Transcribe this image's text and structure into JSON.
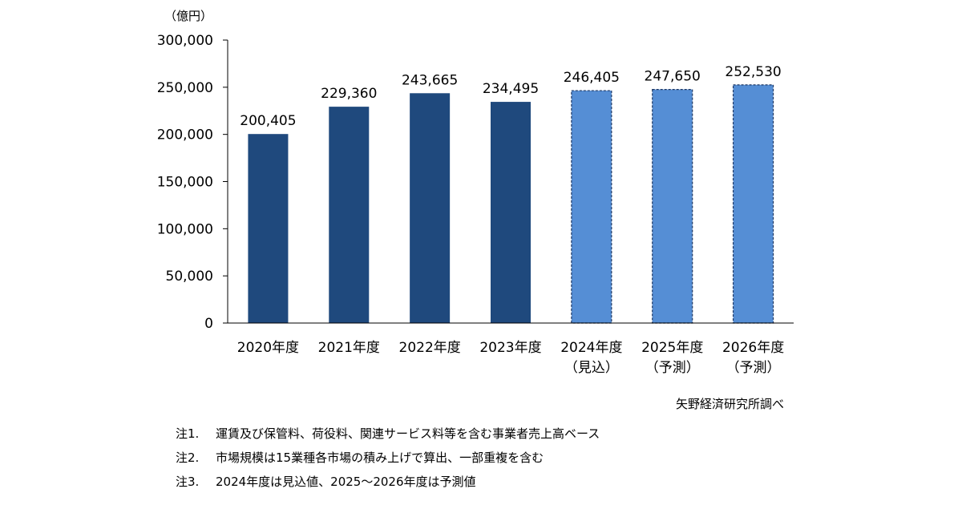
{
  "chart_data": {
    "type": "bar",
    "unit": "（億円）",
    "categories": [
      [
        "2020年度"
      ],
      [
        "2021年度"
      ],
      [
        "2022年度"
      ],
      [
        "2023年度"
      ],
      [
        "2024年度",
        "（見込）"
      ],
      [
        "2025年度",
        "（予測）"
      ],
      [
        "2026年度",
        "（予測）"
      ]
    ],
    "values": [
      200405,
      229360,
      243665,
      234495,
      246405,
      247650,
      252530
    ],
    "value_labels": [
      "200,405",
      "229,360",
      "243,665",
      "234,495",
      "246,405",
      "247,650",
      "252,530"
    ],
    "bar_styles": [
      "actual",
      "actual",
      "actual",
      "actual",
      "estimate",
      "forecast",
      "forecast"
    ],
    "ylim": [
      0,
      300000
    ],
    "yticks": [
      0,
      50000,
      100000,
      150000,
      200000,
      250000,
      300000
    ],
    "ytick_labels": [
      "0",
      "50,000",
      "100,000",
      "150,000",
      "200,000",
      "250,000",
      "300,000"
    ],
    "grid": false,
    "colors": {
      "actual": "#1f497d",
      "projected": "#558ed5",
      "projected_border": "#1f3864",
      "axis": "#000000"
    }
  },
  "source": "矢野経済研究所調べ",
  "notes": [
    {
      "key": "注1.",
      "text": "運賃及び保管料、荷役料、関連サービス料等を含む事業者売上高ベース"
    },
    {
      "key": "注2.",
      "text": "市場規模は15業種各市場の積み上げで算出、一部重複を含む"
    },
    {
      "key": "注3.",
      "text": "2024年度は見込値、2025～2026年度は予測値"
    }
  ]
}
